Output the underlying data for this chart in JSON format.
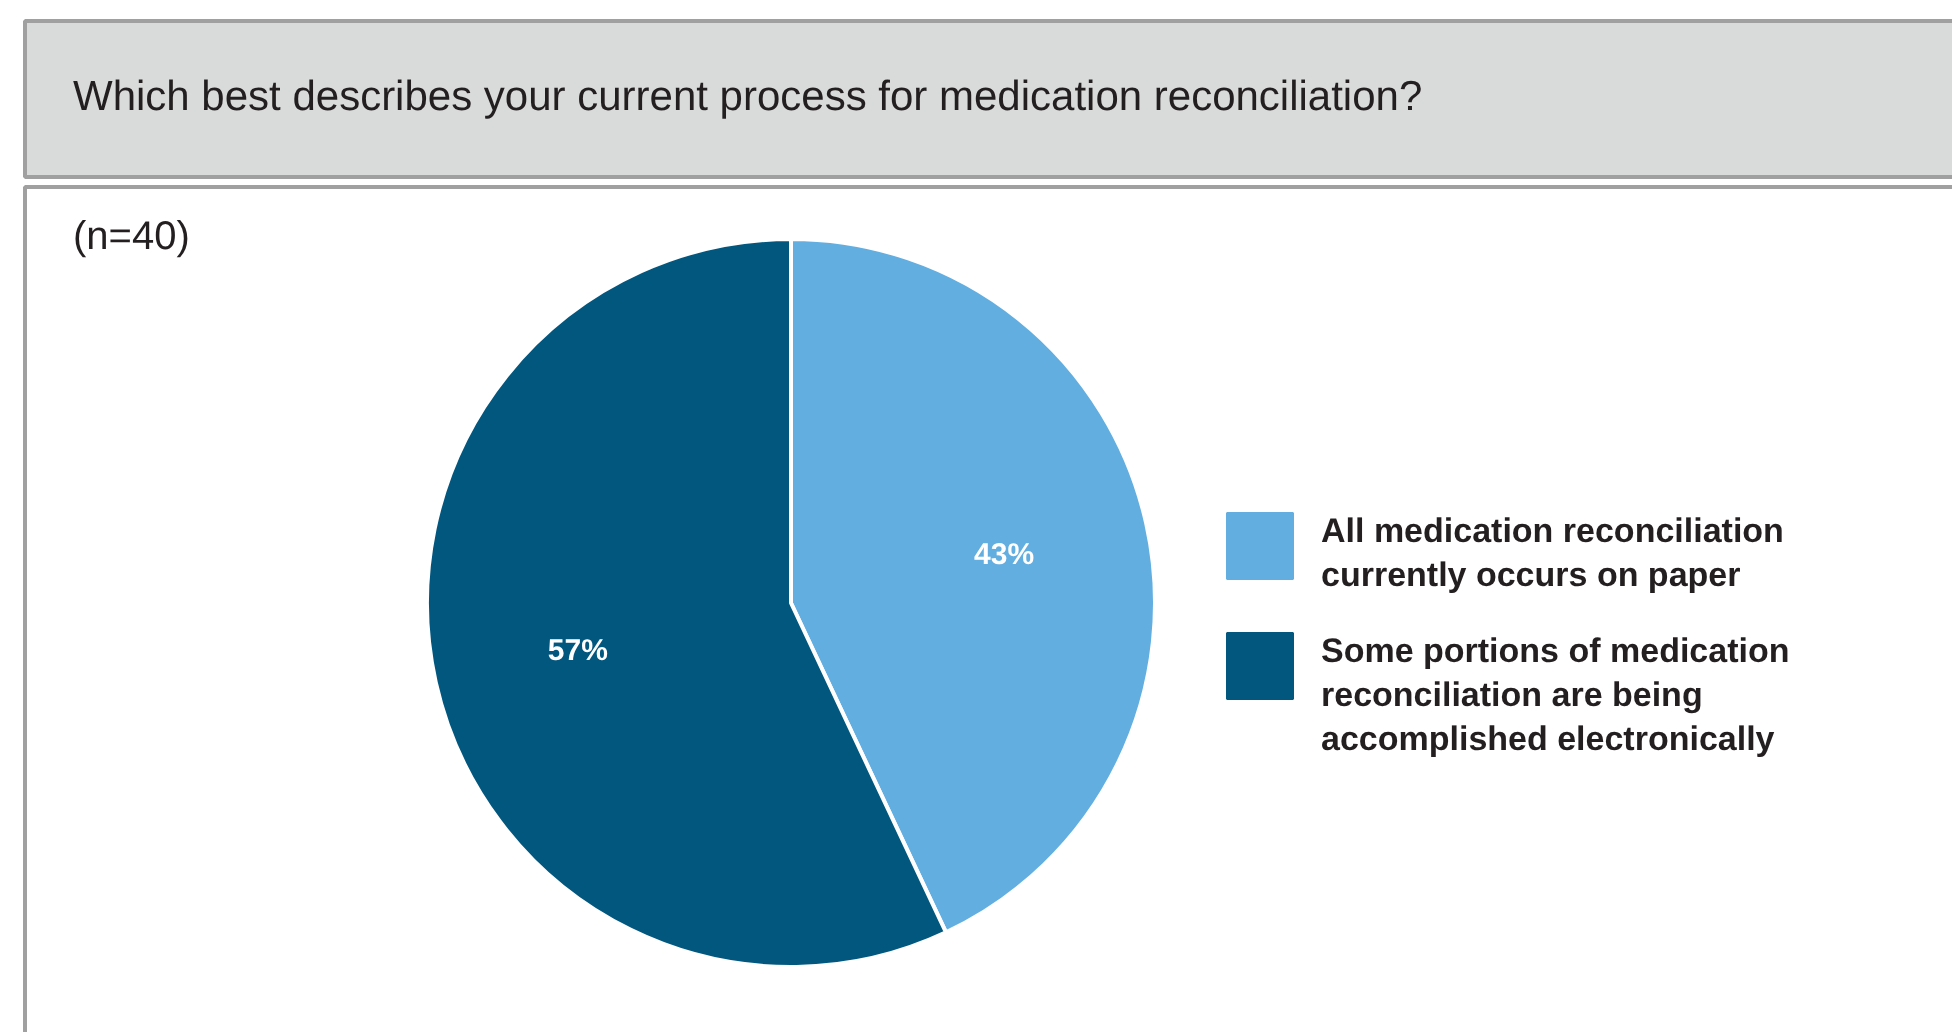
{
  "chart_data": {
    "type": "pie",
    "title": "Which best describes your current process for medication reconciliation?",
    "subtitle": "(n=40)",
    "categories": [
      "All medication reconciliation currently occurs on paper",
      "Some portions of medication reconciliation are being accomplished electronically"
    ],
    "values": [
      43,
      57
    ],
    "colors": [
      "#62aee0",
      "#02577f"
    ],
    "value_labels": [
      "43%",
      "57%"
    ],
    "legend": "right"
  }
}
